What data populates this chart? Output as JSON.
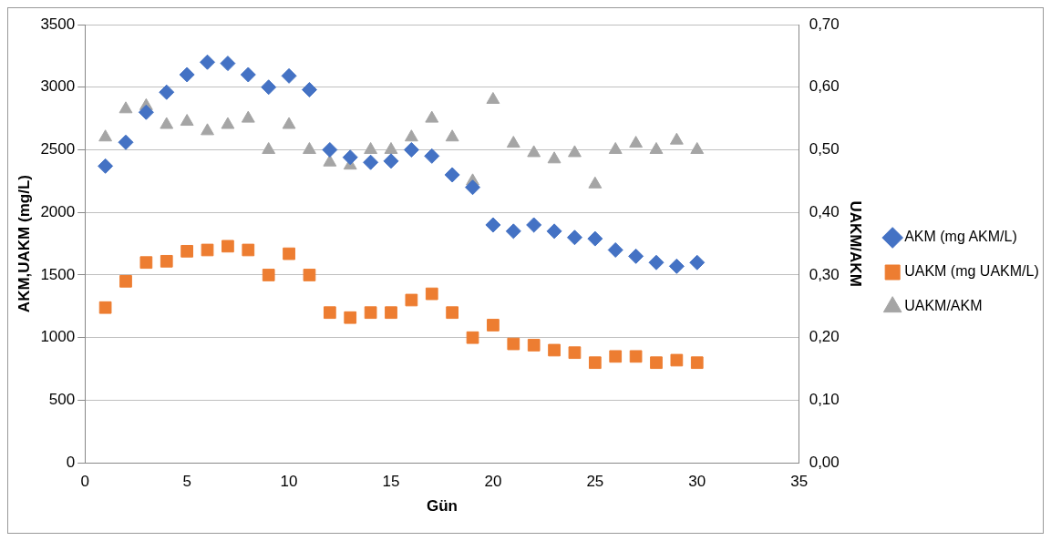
{
  "chart_data": {
    "type": "scatter",
    "xlabel": "Gün",
    "ylabel": "AKM,UAKM (mg/L)",
    "y2label": "UAKM/AKM",
    "x": [
      1,
      2,
      3,
      4,
      5,
      6,
      7,
      8,
      9,
      10,
      11,
      12,
      13,
      14,
      15,
      16,
      17,
      18,
      19,
      20,
      21,
      22,
      23,
      24,
      25,
      26,
      27,
      28,
      29,
      30
    ],
    "series": [
      {
        "name": "AKM (mg AKM/L)",
        "color": "#4472c4",
        "marker": "diamond",
        "values": [
          2370,
          2560,
          2800,
          2960,
          3100,
          3200,
          3190,
          3100,
          3000,
          3090,
          2980,
          2500,
          2440,
          2400,
          2410,
          2500,
          2450,
          2300,
          2200,
          1900,
          1850,
          1900,
          1850,
          1800,
          1790,
          1700,
          1650,
          1600,
          1570,
          1600
        ]
      },
      {
        "name": "UAKM (mg UAKM/L)",
        "color": "#ed7d31",
        "marker": "square",
        "values": [
          1240,
          1450,
          1600,
          1610,
          1690,
          1700,
          1730,
          1700,
          1500,
          1670,
          1500,
          1200,
          1160,
          1200,
          1200,
          1300,
          1350,
          1200,
          1000,
          1100,
          950,
          940,
          900,
          880,
          800,
          850,
          850,
          800,
          820,
          800
        ]
      },
      {
        "name": "UAKM/AKM",
        "color": "#a5a5a5",
        "marker": "triangle",
        "axis": "y2",
        "values": [
          0.52,
          0.565,
          0.57,
          0.54,
          0.545,
          0.53,
          0.54,
          0.55,
          0.5,
          0.54,
          0.5,
          0.48,
          0.475,
          0.5,
          0.5,
          0.52,
          0.55,
          0.52,
          0.45,
          0.58,
          0.51,
          0.495,
          0.485,
          0.495,
          0.445,
          0.5,
          0.51,
          0.5,
          0.515,
          0.5
        ]
      }
    ],
    "xlim": [
      0,
      35
    ],
    "xticks": [
      0,
      5,
      10,
      15,
      20,
      25,
      30,
      35
    ],
    "ylim": [
      0,
      3500
    ],
    "yticks": [
      0,
      500,
      1000,
      1500,
      2000,
      2500,
      3000,
      3500
    ],
    "y2lim": [
      0,
      0.7
    ],
    "y2ticks": [
      {
        "value": 0,
        "label": "0,00"
      },
      {
        "value": 0.1,
        "label": "0,10"
      },
      {
        "value": 0.2,
        "label": "0,20"
      },
      {
        "value": 0.3,
        "label": "0,30"
      },
      {
        "value": 0.4,
        "label": "0,40"
      },
      {
        "value": 0.5,
        "label": "0,50"
      },
      {
        "value": 0.6,
        "label": "0,60"
      },
      {
        "value": 0.7,
        "label": "0,70"
      }
    ],
    "grid": "y",
    "legend": "right"
  }
}
